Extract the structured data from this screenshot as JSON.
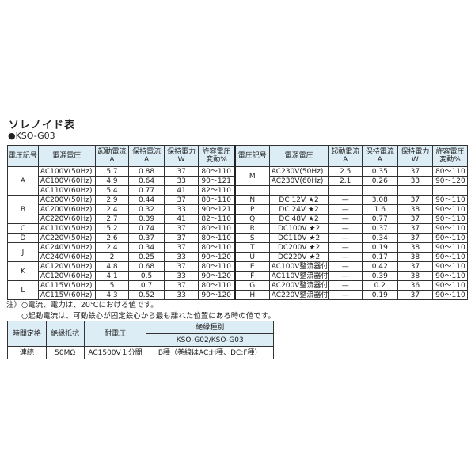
{
  "title": "ソレノイド表",
  "model": "●KSO-G03",
  "headers": [
    "電圧記号",
    "電源電圧",
    "起動電流",
    "A",
    "保持電流",
    "A",
    "保持電力",
    "W",
    "許容電圧",
    "変動%"
  ],
  "left_groups": [
    {
      "code": "A",
      "rows": [
        [
          "AC100V(50Hz)",
          "5.7",
          "0.88",
          "37",
          "80〜110"
        ],
        [
          "AC100V(60Hz)",
          "4.9",
          "0.64",
          "33",
          "90〜121"
        ],
        [
          "AC110V(60Hz)",
          "5.4",
          "0.77",
          "41",
          "82〜110"
        ]
      ]
    },
    {
      "code": "B",
      "rows": [
        [
          "AC200V(50Hz)",
          "2.9",
          "0.44",
          "37",
          "80〜110"
        ],
        [
          "AC200V(60Hz)",
          "2.4",
          "0.32",
          "33",
          "90〜121"
        ],
        [
          "AC220V(60Hz)",
          "2.7",
          "0.39",
          "41",
          "82〜110"
        ]
      ]
    },
    {
      "code": "C",
      "rows": [
        [
          "AC110V(50Hz)",
          "5.2",
          "0.74",
          "37",
          "80〜110"
        ]
      ]
    },
    {
      "code": "D",
      "rows": [
        [
          "AC220V(50Hz)",
          "2.6",
          "0.37",
          "37",
          "80〜110"
        ]
      ]
    },
    {
      "code": "J",
      "rows": [
        [
          "AC240V(50Hz)",
          "2.4",
          "0.34",
          "37",
          "80〜110"
        ],
        [
          "AC240V(60Hz)",
          "2",
          "0.25",
          "33",
          "90〜120"
        ]
      ]
    },
    {
      "code": "K",
      "rows": [
        [
          "AC120V(50Hz)",
          "4.8",
          "0.68",
          "37",
          "80〜110"
        ],
        [
          "AC120V(60Hz)",
          "4.1",
          "0.5",
          "33",
          "90〜120"
        ]
      ]
    },
    {
      "code": "L",
      "rows": [
        [
          "AC115V(50Hz)",
          "5",
          "0.7",
          "37",
          "80〜110"
        ],
        [
          "AC115V(60Hz)",
          "4.3",
          "0.52",
          "33",
          "90〜120"
        ]
      ]
    }
  ],
  "right_groups": [
    {
      "code": "M",
      "rows": [
        [
          "AC230V(50Hz)",
          "2.5",
          "0.35",
          "37",
          "80〜110"
        ],
        [
          "AC230V(60Hz)",
          "2.1",
          "0.26",
          "33",
          "90〜120"
        ]
      ]
    },
    {
      "code": "",
      "rows": [
        [
          "",
          "",
          "",
          "",
          ""
        ]
      ]
    },
    {
      "code": "N",
      "rows": [
        [
          "DC 12V ★2",
          "—",
          "3.08",
          "37",
          "90〜110"
        ]
      ]
    },
    {
      "code": "P",
      "rows": [
        [
          "DC 24V ★2",
          "—",
          "1.6",
          "38",
          "90〜110"
        ]
      ]
    },
    {
      "code": "Q",
      "rows": [
        [
          "DC 48V ★2",
          "—",
          "0.77",
          "37",
          "90〜110"
        ]
      ]
    },
    {
      "code": "R",
      "rows": [
        [
          "DC100V ★2",
          "—",
          "0.37",
          "37",
          "90〜110"
        ]
      ]
    },
    {
      "code": "S",
      "rows": [
        [
          "DC110V ★2",
          "—",
          "0.34",
          "37",
          "90〜110"
        ]
      ]
    },
    {
      "code": "T",
      "rows": [
        [
          "DC200V ★2",
          "—",
          "0.19",
          "38",
          "90〜110"
        ]
      ]
    },
    {
      "code": "U",
      "rows": [
        [
          "DC220V ★2",
          "—",
          "0.17",
          "38",
          "90〜110"
        ]
      ]
    },
    {
      "code": "E",
      "rows": [
        [
          "AC100V整流器付",
          "—",
          "0.42",
          "37",
          "90〜110"
        ]
      ]
    },
    {
      "code": "F",
      "rows": [
        [
          "AC110V整流器付",
          "—",
          "0.39",
          "38",
          "90〜110"
        ]
      ]
    },
    {
      "code": "G",
      "rows": [
        [
          "AC200V整流器付",
          "—",
          "0.2",
          "36",
          "90〜110"
        ]
      ]
    },
    {
      "code": "H",
      "rows": [
        [
          "AC220V整流器付",
          "—",
          "0.19",
          "37",
          "90〜110"
        ]
      ]
    }
  ],
  "notes": [
    "注）○電流、電力は、20℃における値です。",
    "○起動電流は、可動鉄心が固定鉄心から最も離れた位置にある時の値です。"
  ],
  "spec": {
    "headers": [
      "時間定格",
      "絶縁抵抗",
      "耐電圧",
      "絶縁種別"
    ],
    "subheader": "KSO-G02/KSO-G03",
    "values": [
      "連続",
      "50MΩ",
      "AC1500V１分間",
      "B種（巻線はAC:H種、DC:F種）"
    ]
  },
  "colors": {
    "header_bg": "#dcedf6"
  }
}
